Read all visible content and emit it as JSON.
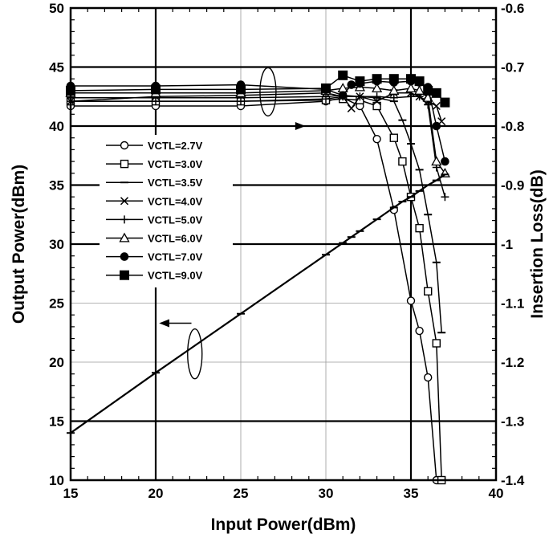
{
  "chart_data": {
    "type": "line",
    "xlabel": "Input Power(dBm)",
    "ylabel": "Output Power(dBm)",
    "y2label": "Insertion Loss(dB)",
    "xlim": [
      15,
      40
    ],
    "ylim": [
      10,
      50
    ],
    "y2lim": [
      -1.4,
      -0.6
    ],
    "xticks": [
      15,
      20,
      25,
      30,
      35,
      40
    ],
    "yticks": [
      10,
      15,
      20,
      25,
      30,
      35,
      40,
      45,
      50
    ],
    "y2ticks": [
      -1.4,
      -1.3,
      -1.2,
      -1.1,
      -1.0,
      -0.9,
      -0.8,
      -0.7,
      -0.6
    ],
    "y2ticklabels": [
      "-1.4",
      "-1.3",
      "-1.2",
      "-1.1",
      "-1",
      "-0.9",
      "-0.8",
      "-0.7",
      "-0.6"
    ],
    "grid": true,
    "legend_position": "left",
    "output_power": {
      "axis": "left",
      "x": [
        15,
        20,
        25,
        30,
        31,
        31.5,
        32,
        33,
        34,
        34.5,
        35,
        35.5,
        36,
        36.5,
        37
      ],
      "values": [
        14,
        19.1,
        24.1,
        29.1,
        30.1,
        30.6,
        31.1,
        32.1,
        33.1,
        33.6,
        34,
        34.5,
        35,
        35.4,
        35.9
      ],
      "marker": "square"
    },
    "series": [
      {
        "name": "VCTL=2.7V",
        "marker": "circle-open",
        "x": [
          15,
          20,
          25,
          30,
          31,
          32,
          33,
          34,
          35,
          35.5,
          36,
          36.5
        ],
        "values": [
          -0.766,
          -0.766,
          -0.766,
          -0.758,
          -0.752,
          -0.766,
          -0.822,
          -0.942,
          -1.096,
          -1.147,
          -1.226,
          -1.4
        ]
      },
      {
        "name": "VCTL=3.0V",
        "marker": "square-open",
        "x": [
          15,
          20,
          25,
          30,
          31,
          32,
          33,
          34,
          34.5,
          35,
          35.5,
          36,
          36.5,
          36.8
        ],
        "values": [
          -0.758,
          -0.758,
          -0.758,
          -0.756,
          -0.754,
          -0.756,
          -0.766,
          -0.82,
          -0.86,
          -0.92,
          -0.973,
          -1.08,
          -1.168,
          -1.4
        ]
      },
      {
        "name": "VCTL=3.5V",
        "marker": "dash",
        "x": [
          15,
          20,
          25,
          30,
          31,
          32,
          33,
          34,
          34.5,
          35,
          35.5,
          36,
          36.5,
          36.8
        ],
        "values": [
          -0.752,
          -0.752,
          -0.752,
          -0.75,
          -0.748,
          -0.75,
          -0.752,
          -0.758,
          -0.79,
          -0.83,
          -0.874,
          -0.95,
          -1.031,
          -1.15
        ]
      },
      {
        "name": "VCTL=4.0V",
        "marker": "x",
        "x": [
          15,
          20,
          25,
          30,
          31,
          31.5,
          32,
          33,
          34,
          35,
          35.5,
          36,
          36.5,
          36.8
        ],
        "values": [
          -0.758,
          -0.75,
          -0.748,
          -0.744,
          -0.75,
          -0.77,
          -0.75,
          -0.758,
          -0.744,
          -0.744,
          -0.75,
          -0.758,
          -0.766,
          -0.792
        ]
      },
      {
        "name": "VCTL=5.0V",
        "marker": "plus",
        "x": [
          15,
          20,
          25,
          30,
          31,
          32,
          33,
          34,
          35,
          35.5,
          36,
          36.5,
          37
        ],
        "values": [
          -0.758,
          -0.758,
          -0.758,
          -0.754,
          -0.75,
          -0.75,
          -0.75,
          -0.752,
          -0.75,
          -0.75,
          -0.764,
          -0.87,
          -0.92
        ]
      },
      {
        "name": "VCTL=6.0V",
        "marker": "triangle-open",
        "x": [
          15,
          20,
          25,
          30,
          31,
          32,
          33,
          34,
          35,
          35.5,
          36,
          36.5,
          37
        ],
        "values": [
          -0.744,
          -0.744,
          -0.744,
          -0.74,
          -0.736,
          -0.734,
          -0.736,
          -0.74,
          -0.736,
          -0.74,
          -0.752,
          -0.86,
          -0.88
        ]
      },
      {
        "name": "VCTL=7.0V",
        "marker": "circle-filled",
        "x": [
          15,
          20,
          25,
          30,
          31,
          31.5,
          32,
          33,
          34,
          35,
          35.5,
          36,
          36.5,
          37
        ],
        "values": [
          -0.732,
          -0.732,
          -0.73,
          -0.738,
          -0.748,
          -0.73,
          -0.728,
          -0.724,
          -0.726,
          -0.724,
          -0.726,
          -0.734,
          -0.8,
          -0.86
        ]
      },
      {
        "name": "VCTL=9.0V",
        "marker": "square-filled",
        "x": [
          15,
          20,
          25,
          30,
          31,
          32,
          33,
          34,
          35,
          35.5,
          36,
          36.5,
          37
        ],
        "values": [
          -0.74,
          -0.738,
          -0.738,
          -0.736,
          -0.714,
          -0.724,
          -0.72,
          -0.72,
          -0.72,
          -0.724,
          -0.74,
          -0.744,
          -0.76
        ]
      }
    ]
  }
}
